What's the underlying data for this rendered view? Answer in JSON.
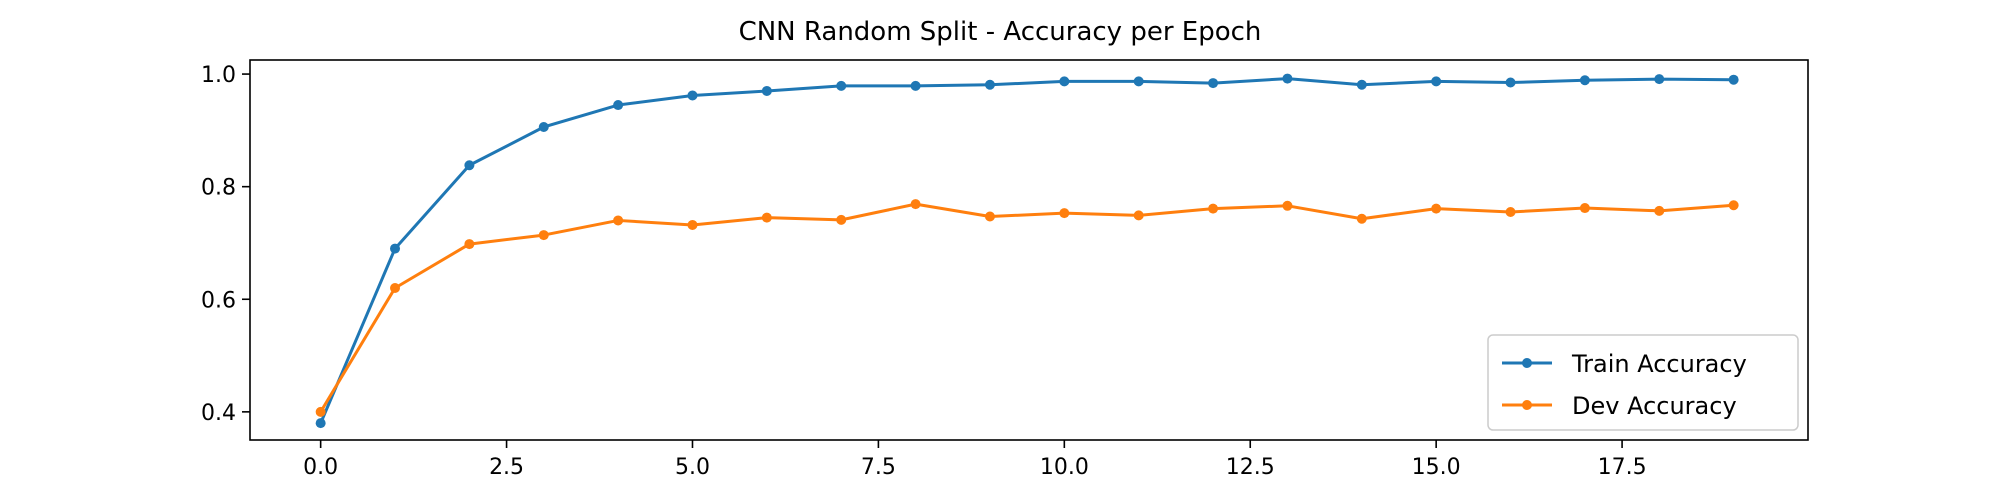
{
  "chart_data": {
    "type": "line",
    "title": "CNN Random Split -  Accuracy per Epoch",
    "xlabel": "",
    "ylabel": "",
    "xlim": [
      -0.95,
      20.0
    ],
    "ylim": [
      0.35,
      1.025
    ],
    "x_ticks": [
      0.0,
      2.5,
      5.0,
      7.5,
      10.0,
      12.5,
      15.0,
      17.5
    ],
    "x_tick_labels": [
      "0.0",
      "2.5",
      "5.0",
      "7.5",
      "10.0",
      "12.5",
      "15.0",
      "17.5"
    ],
    "y_ticks": [
      0.4,
      0.6,
      0.8,
      1.0
    ],
    "y_tick_labels": [
      "0.4",
      "0.6",
      "0.8",
      "1.0"
    ],
    "grid": false,
    "legend_position": "bottom-right",
    "x": [
      0,
      1,
      2,
      3,
      4,
      5,
      6,
      7,
      8,
      9,
      10,
      11,
      12,
      13,
      14,
      15,
      16,
      17,
      18,
      19
    ],
    "series": [
      {
        "name": "Train Accuracy",
        "color": "#1f77b4",
        "values": [
          0.38,
          0.69,
          0.838,
          0.906,
          0.945,
          0.962,
          0.97,
          0.979,
          0.979,
          0.981,
          0.987,
          0.987,
          0.984,
          0.992,
          0.981,
          0.987,
          0.985,
          0.989,
          0.991,
          0.99
        ]
      },
      {
        "name": "Dev Accuracy",
        "color": "#ff7f0e",
        "values": [
          0.4,
          0.62,
          0.698,
          0.714,
          0.74,
          0.732,
          0.745,
          0.741,
          0.769,
          0.747,
          0.753,
          0.749,
          0.761,
          0.766,
          0.743,
          0.761,
          0.755,
          0.762,
          0.757,
          0.767
        ]
      }
    ]
  }
}
